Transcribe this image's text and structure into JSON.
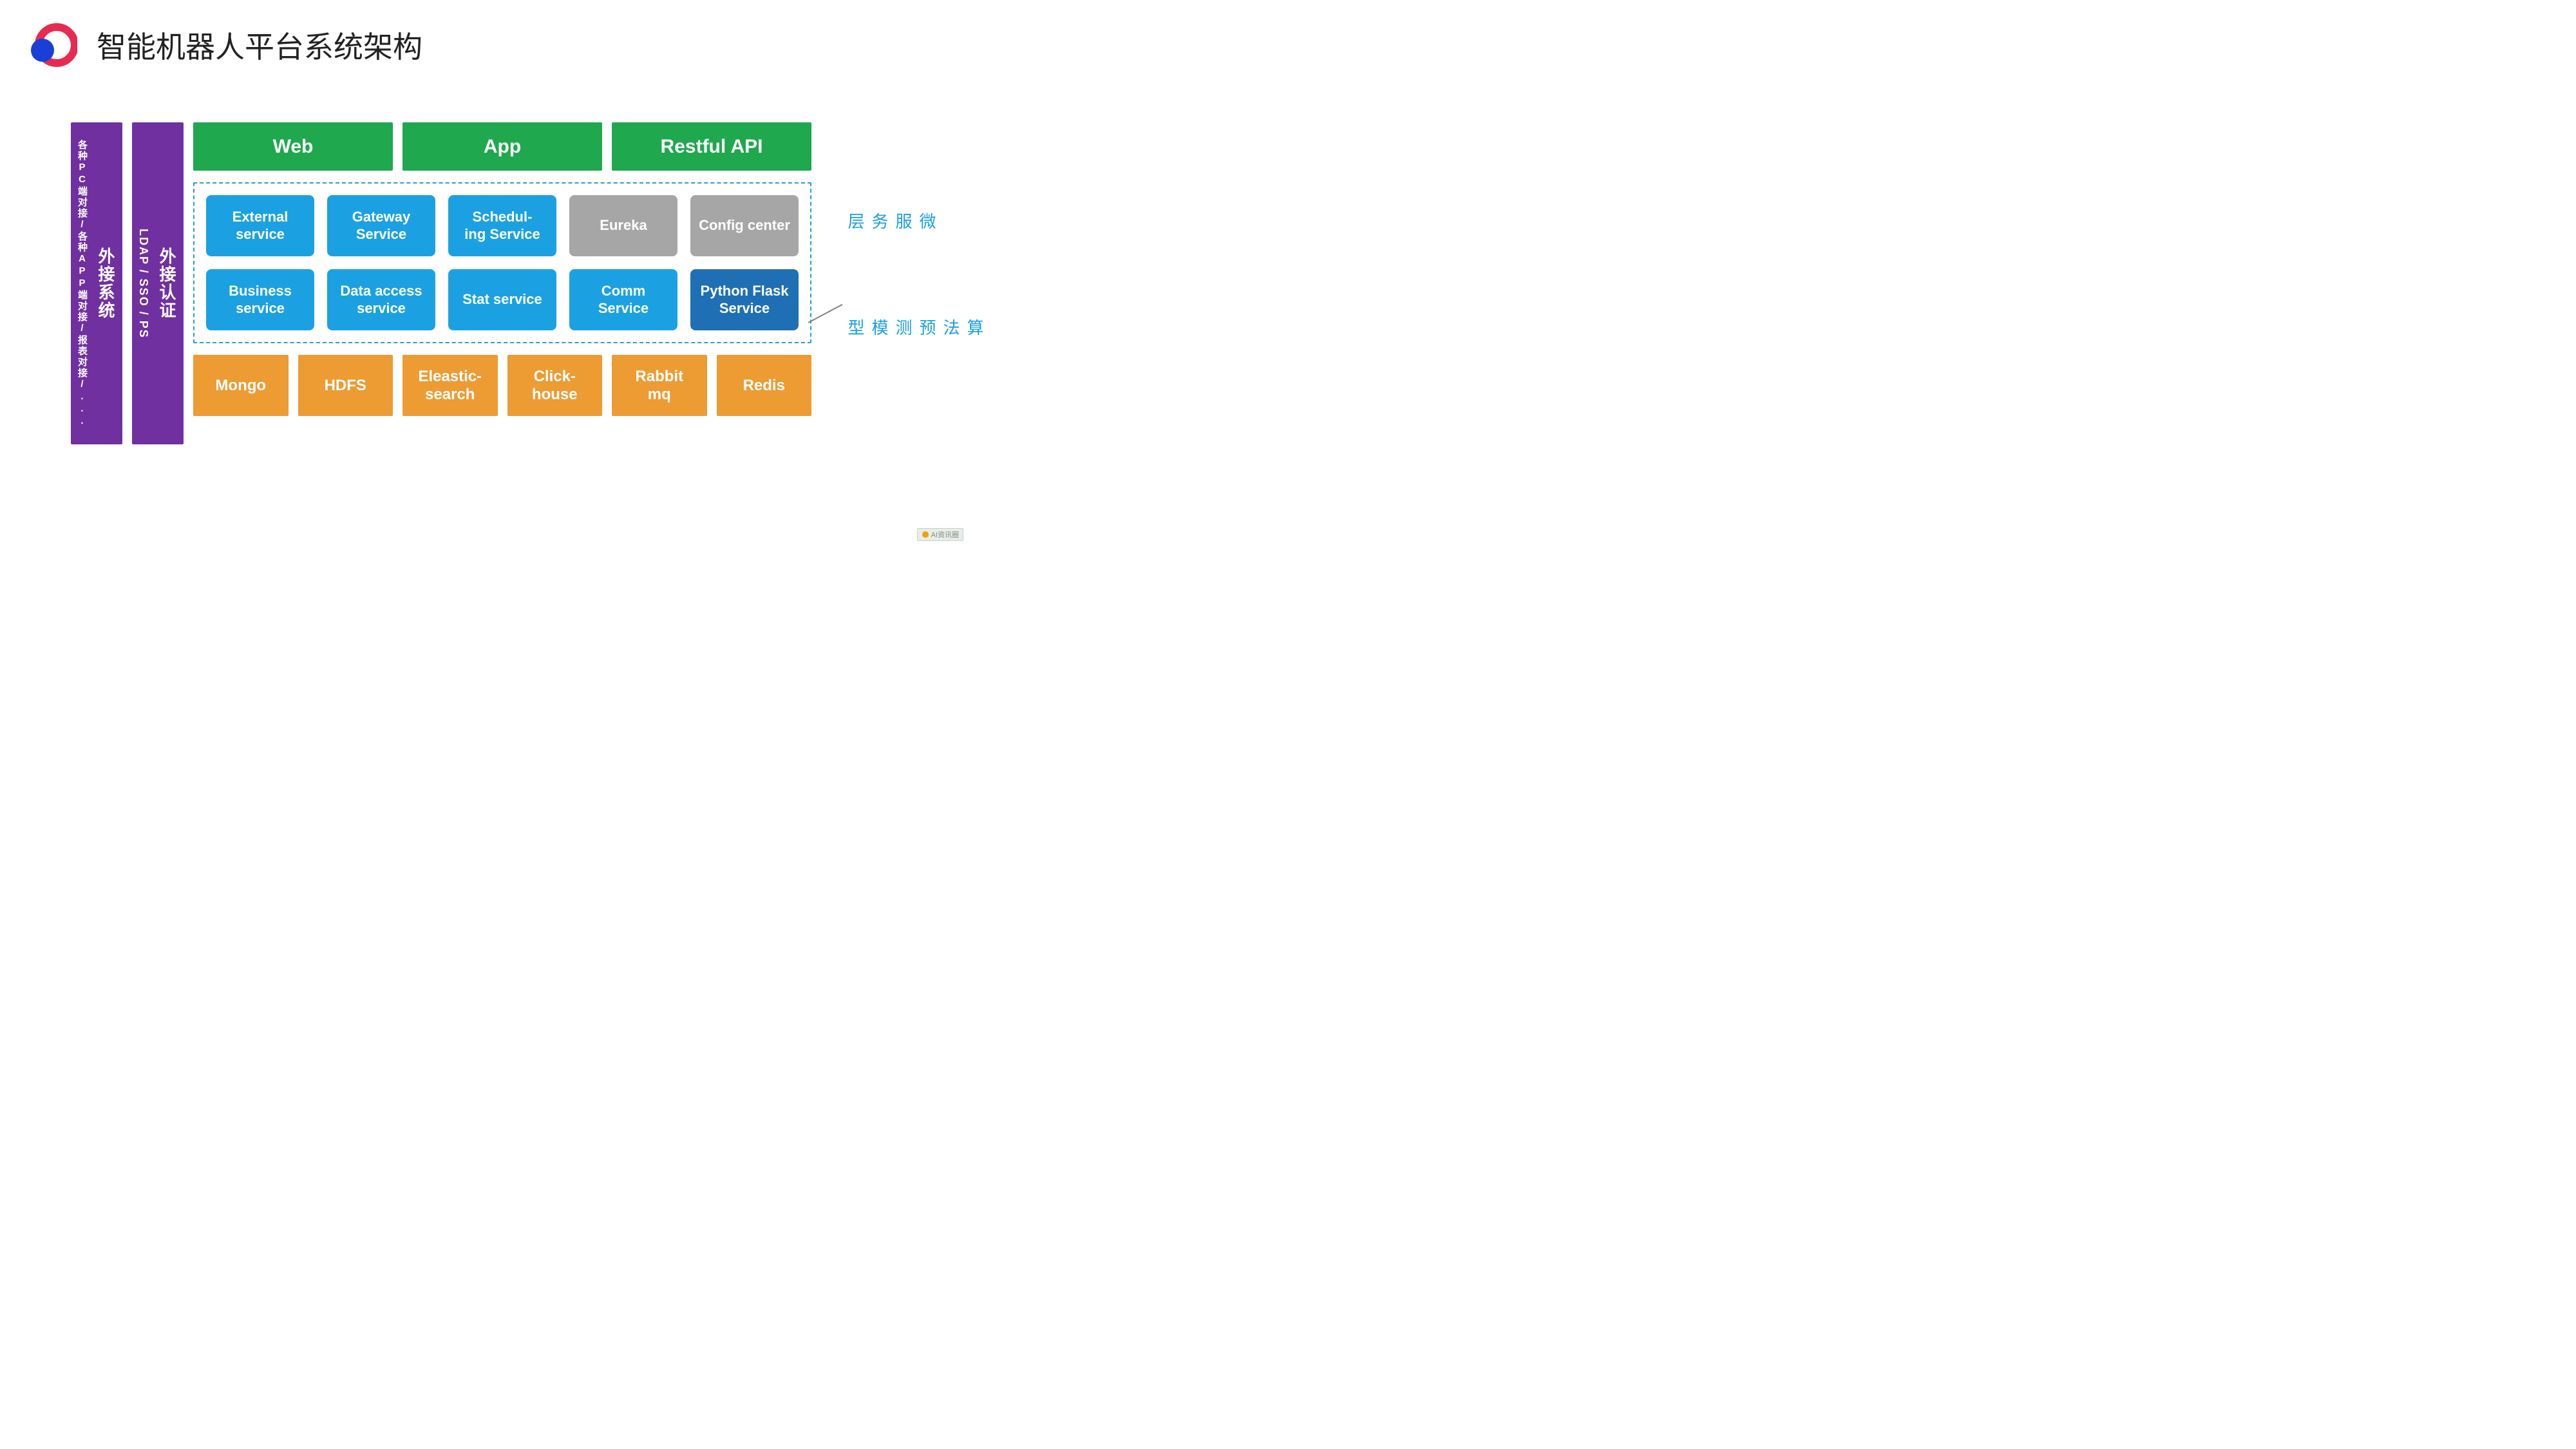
{
  "title": "智能机器人平台系统架构",
  "colors": {
    "purple": "#7030a0",
    "green": "#1fa84d",
    "blue": "#1ba1e2",
    "gray": "#a6a6a6",
    "darkblue": "#1f6fb5",
    "orange": "#ed9b33",
    "label_blue": "#1ba1e2",
    "arrow_gray": "#808080",
    "logo_red": "#e52b50",
    "logo_blue": "#1a3fd6"
  },
  "left_columns": [
    {
      "big": "外接系统",
      "small": "各种PC端对接/各种APP端对接/报表对接/..."
    },
    {
      "big": "外接认证",
      "small": "LDAP / SSO / PS"
    }
  ],
  "top_row": [
    "Web",
    "App",
    "Restful API"
  ],
  "service_rows": [
    [
      {
        "label": "External service",
        "color": "blue"
      },
      {
        "label": "Gateway Service",
        "color": "blue"
      },
      {
        "label": "Schedul-\ning Service",
        "color": "blue"
      },
      {
        "label": "Eureka",
        "color": "gray"
      },
      {
        "label": "Config center",
        "color": "gray"
      }
    ],
    [
      {
        "label": "Business service",
        "color": "blue"
      },
      {
        "label": "Data access service",
        "color": "blue"
      },
      {
        "label": "Stat service",
        "color": "blue"
      },
      {
        "label": "Comm Service",
        "color": "blue"
      },
      {
        "label": "Python Flask Service",
        "color": "darkblue"
      }
    ]
  ],
  "storage_row": [
    "Mongo",
    "HDFS",
    "Eleastic-search",
    "Click-house",
    "Rabbit mq",
    "Redis"
  ],
  "right_labels": {
    "top": "微服务层",
    "bottom": "算法预测模型"
  },
  "watermark": "AI资讯圈"
}
